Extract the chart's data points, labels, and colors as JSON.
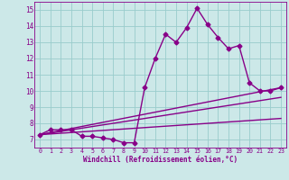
{
  "xlabel": "Windchill (Refroidissement éolien,°C)",
  "ylabel": "",
  "xlim": [
    -0.5,
    23.5
  ],
  "ylim": [
    6.5,
    15.5
  ],
  "xticks": [
    0,
    1,
    2,
    3,
    4,
    5,
    6,
    7,
    8,
    9,
    10,
    11,
    12,
    13,
    14,
    15,
    16,
    17,
    18,
    19,
    20,
    21,
    22,
    23
  ],
  "yticks": [
    7,
    8,
    9,
    10,
    11,
    12,
    13,
    14,
    15
  ],
  "background_color": "#cce8e8",
  "line_color": "#880088",
  "grid_color": "#99cccc",
  "series": [
    {
      "x": [
        0,
        1,
        2,
        3,
        4,
        5,
        6,
        7,
        8,
        9,
        10,
        11,
        12,
        13,
        14,
        15,
        16,
        17,
        18,
        19,
        20,
        21,
        22,
        23
      ],
      "y": [
        7.3,
        7.6,
        7.6,
        7.6,
        7.2,
        7.2,
        7.1,
        7.0,
        6.8,
        6.8,
        10.2,
        12.0,
        13.5,
        13.0,
        13.9,
        15.1,
        14.1,
        13.3,
        12.6,
        12.8,
        10.5,
        10.0,
        10.0,
        10.2
      ],
      "marker": "D",
      "markersize": 2.5,
      "linewidth": 1.0
    },
    {
      "x": [
        0,
        23
      ],
      "y": [
        7.3,
        10.2
      ],
      "marker": null,
      "markersize": 0,
      "linewidth": 1.0
    },
    {
      "x": [
        0,
        23
      ],
      "y": [
        7.3,
        9.6
      ],
      "marker": null,
      "markersize": 0,
      "linewidth": 1.0
    },
    {
      "x": [
        0,
        23
      ],
      "y": [
        7.3,
        8.3
      ],
      "marker": null,
      "markersize": 0,
      "linewidth": 1.0
    }
  ]
}
